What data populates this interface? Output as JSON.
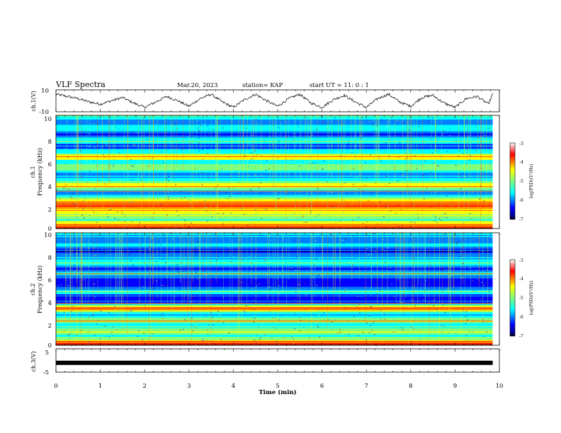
{
  "header": {
    "title": "VLF Spectra",
    "date": "Mar.20, 2023",
    "station": "station= KAP",
    "start": "start  UT  =   11: 0  : 1"
  },
  "x_axis": {
    "label": "Time  (min)",
    "ticks": [
      "0",
      "1",
      "2",
      "3",
      "4",
      "5",
      "6",
      "7",
      "8",
      "9",
      "10"
    ]
  },
  "panels": {
    "ch1v": {
      "ylabel": "ch.1(V)",
      "ticks": [
        "10",
        "-10"
      ]
    },
    "spec1": {
      "ylabel1": "ch.1",
      "ylabel2": "Frequency (kHz)",
      "ticks": [
        "10",
        "8",
        "6",
        "4",
        "2",
        "0"
      ]
    },
    "spec2": {
      "ylabel1": "ch.2",
      "ylabel2": "Frequency (kHz)",
      "ticks": [
        "10",
        "8",
        "6",
        "4",
        "2",
        "0"
      ]
    },
    "ch3v": {
      "ylabel": "ch.3(V)",
      "ticks": [
        "5",
        "-5"
      ]
    }
  },
  "colorbar": {
    "label": "log(PSD)(V²/Hz)",
    "ticks": [
      "-3",
      "-4",
      "-5",
      "-6",
      "-7"
    ],
    "min": -7,
    "max": -3
  },
  "colors": {
    "jet": [
      "#00008f",
      "#0000ff",
      "#007fff",
      "#00ffff",
      "#7fff7f",
      "#ffff00",
      "#ff7f00",
      "#ff0000",
      "#7f0000"
    ]
  },
  "chart_data": [
    {
      "type": "line",
      "ylabel": "ch.1(V)",
      "xlim": [
        0,
        10
      ],
      "ylim": [
        -10,
        10
      ],
      "x": [
        0,
        0.25,
        0.5,
        0.75,
        1,
        1.25,
        1.5,
        1.75,
        2,
        2.25,
        2.5,
        2.75,
        3,
        3.25,
        3.5,
        3.75,
        4,
        4.25,
        4.5,
        4.75,
        5,
        5.25,
        5.5,
        5.75,
        6,
        6.25,
        6.5,
        6.75,
        7,
        7.25,
        7.5,
        7.75,
        8,
        8.25,
        8.5,
        8.75,
        9,
        9.25,
        9.5,
        9.75,
        9.85
      ],
      "values": [
        6,
        4,
        2,
        -1,
        -3,
        0,
        3,
        -2,
        -6,
        -1,
        4,
        0,
        -5,
        2,
        6,
        -1,
        -6,
        1,
        6,
        0,
        -5,
        2,
        6,
        -2,
        -6,
        1,
        5,
        -1,
        -6,
        2,
        6,
        -1,
        -5,
        3,
        5,
        -2,
        -6,
        2,
        4,
        -3,
        6
      ]
    },
    {
      "type": "heatmap",
      "ylabel": "Frequency (kHz)",
      "xlim": [
        0,
        10
      ],
      "ylim": [
        0,
        10
      ],
      "x_extent": [
        0,
        9.85
      ],
      "bands_khz": [
        {
          "f": 0.1,
          "v": -3.2
        },
        {
          "f": 0.35,
          "v": -4.2
        },
        {
          "f": 0.9,
          "v": -5.2
        },
        {
          "f": 1.5,
          "v": -4.6
        },
        {
          "f": 1.9,
          "v": -4.1
        },
        {
          "f": 2.15,
          "v": -3.6
        },
        {
          "f": 2.6,
          "v": -4.8
        },
        {
          "f": 3.2,
          "v": -6.0
        },
        {
          "f": 3.7,
          "v": -4.3
        },
        {
          "f": 4.3,
          "v": -5.4
        },
        {
          "f": 4.85,
          "v": -6.2
        },
        {
          "f": 5.3,
          "v": -4.8
        },
        {
          "f": 5.9,
          "v": -5.6
        },
        {
          "f": 6.35,
          "v": -4.2
        },
        {
          "f": 6.8,
          "v": -5.4
        },
        {
          "f": 7.4,
          "v": -6.4
        },
        {
          "f": 7.8,
          "v": -5.0
        },
        {
          "f": 8.3,
          "v": -6.5
        },
        {
          "f": 8.9,
          "v": -5.5
        },
        {
          "f": 9.5,
          "v": -6.1
        },
        {
          "f": 10.0,
          "v": -5.0
        }
      ]
    },
    {
      "type": "heatmap",
      "ylabel": "Frequency (kHz)",
      "xlim": [
        0,
        10
      ],
      "ylim": [
        0,
        10
      ],
      "x_extent": [
        0,
        9.85
      ],
      "bands_khz": [
        {
          "f": 0.1,
          "v": -3.2
        },
        {
          "f": 0.35,
          "v": -4.3
        },
        {
          "f": 0.8,
          "v": -5.3
        },
        {
          "f": 1.3,
          "v": -4.8
        },
        {
          "f": 1.85,
          "v": -5.6
        },
        {
          "f": 2.2,
          "v": -4.5
        },
        {
          "f": 2.7,
          "v": -5.9
        },
        {
          "f": 3.3,
          "v": -4.0
        },
        {
          "f": 3.9,
          "v": -6.4
        },
        {
          "f": 4.35,
          "v": -6.6
        },
        {
          "f": 4.8,
          "v": -5.1
        },
        {
          "f": 5.3,
          "v": -6.3
        },
        {
          "f": 5.9,
          "v": -6.6
        },
        {
          "f": 6.4,
          "v": -5.0
        },
        {
          "f": 6.9,
          "v": -6.4
        },
        {
          "f": 7.4,
          "v": -5.2
        },
        {
          "f": 7.9,
          "v": -5.8
        },
        {
          "f": 8.4,
          "v": -6.6
        },
        {
          "f": 8.9,
          "v": -5.4
        },
        {
          "f": 9.5,
          "v": -6.2
        },
        {
          "f": 10.0,
          "v": -5.3
        }
      ]
    },
    {
      "type": "line",
      "ylabel": "ch.3(V)",
      "xlim": [
        0,
        10
      ],
      "ylim": [
        -5,
        5
      ],
      "x": [
        0,
        9.85
      ],
      "values": [
        -1,
        -1
      ]
    }
  ]
}
